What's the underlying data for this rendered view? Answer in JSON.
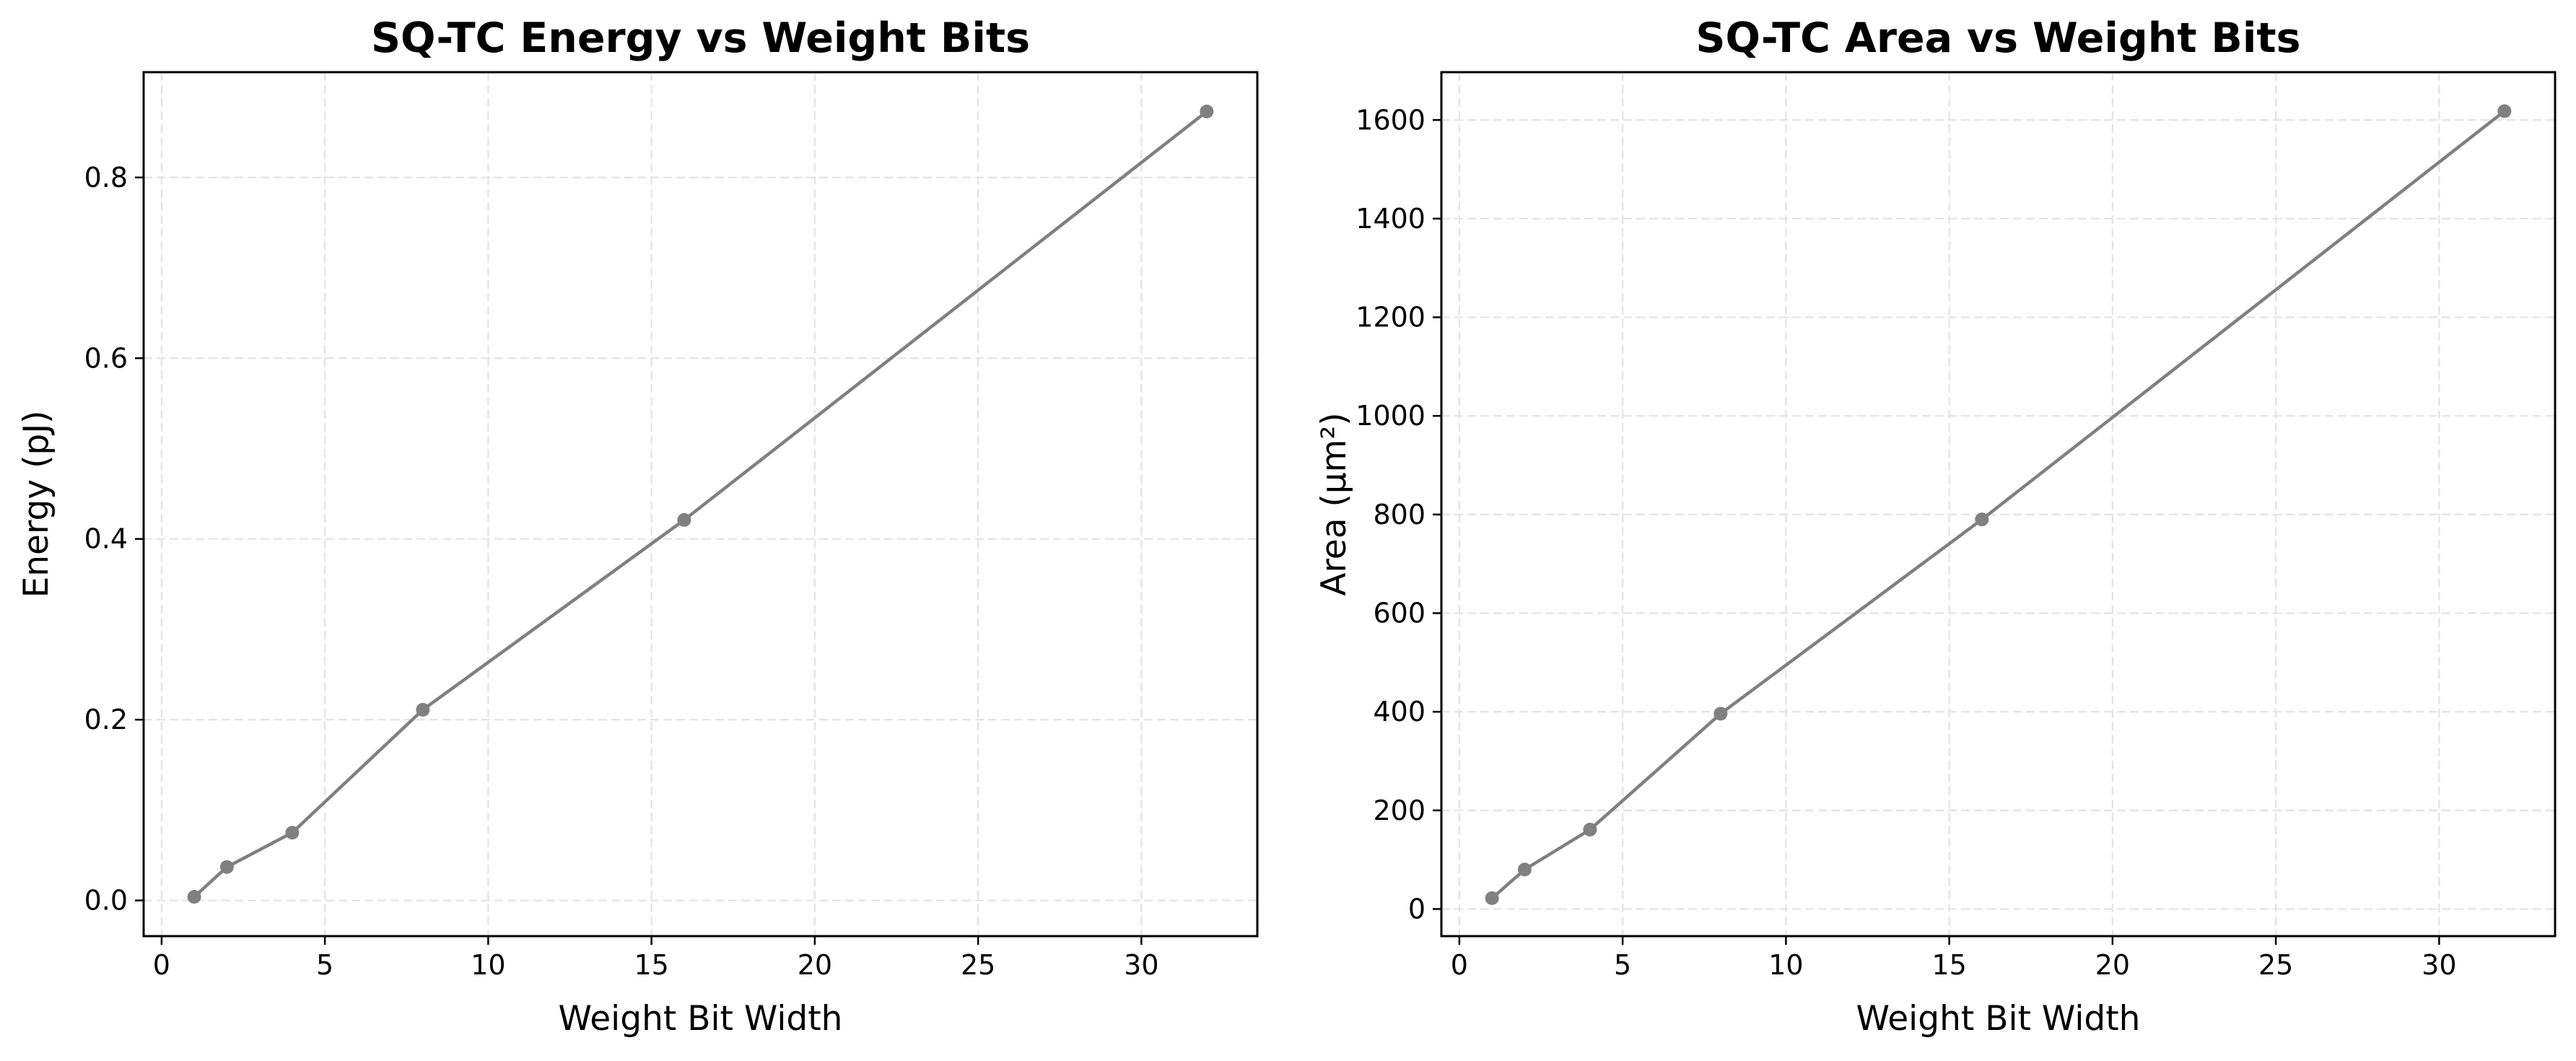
{
  "chart_data": [
    {
      "type": "line",
      "title": "SQ-TC Energy vs Weight Bits",
      "xlabel": "Weight Bit Width",
      "ylabel": "Energy (pJ)",
      "xlim": [
        -0.55,
        33.55
      ],
      "ylim": [
        -0.0395,
        0.9165
      ],
      "xticks": [
        0,
        5,
        10,
        15,
        20,
        25,
        30
      ],
      "yticks": [
        0.0,
        0.2,
        0.4,
        0.6,
        0.8
      ],
      "xtick_labels": [
        "0",
        "5",
        "10",
        "15",
        "20",
        "25",
        "30"
      ],
      "ytick_labels": [
        "0.0",
        "0.2",
        "0.4",
        "0.6",
        "0.8"
      ],
      "grid": true,
      "series": [
        {
          "x": [
            1,
            2,
            4,
            8,
            16,
            32
          ],
          "y": [
            0.004,
            0.037,
            0.075,
            0.211,
            0.421,
            0.873
          ],
          "color": "#808080"
        }
      ]
    },
    {
      "type": "line",
      "title": "SQ-TC Area vs Weight Bits",
      "xlabel": "Weight Bit Width",
      "ylabel": "Area (µm²)",
      "xlim": [
        -0.55,
        33.55
      ],
      "ylim": [
        -55,
        1697
      ],
      "xticks": [
        0,
        5,
        10,
        15,
        20,
        25,
        30
      ],
      "yticks": [
        0,
        200,
        400,
        600,
        800,
        1000,
        1200,
        1400,
        1600
      ],
      "xtick_labels": [
        "0",
        "5",
        "10",
        "15",
        "20",
        "25",
        "30"
      ],
      "ytick_labels": [
        "0",
        "200",
        "400",
        "600",
        "800",
        "1000",
        "1200",
        "1400",
        "1600"
      ],
      "grid": true,
      "series": [
        {
          "x": [
            1,
            2,
            4,
            8,
            16,
            32
          ],
          "y": [
            22,
            80,
            161,
            396,
            790,
            1618
          ],
          "color": "#808080"
        }
      ]
    }
  ]
}
